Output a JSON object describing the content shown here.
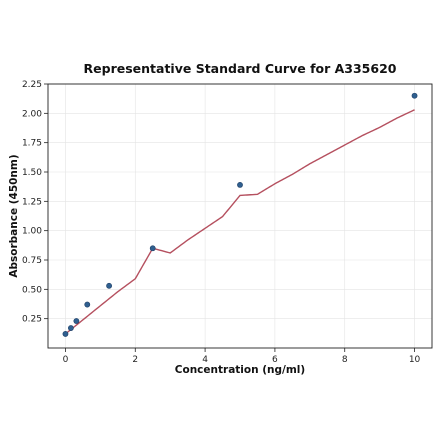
{
  "chart_data": {
    "type": "scatter",
    "title": "Representative Standard Curve for A335620",
    "xlabel": "Concentration (ng/ml)",
    "ylabel": "Absorbance (450nm)",
    "xlim": [
      -0.5,
      10.5
    ],
    "ylim": [
      0.0,
      2.25
    ],
    "xticks": [
      0,
      2,
      4,
      6,
      8,
      10
    ],
    "yticks": [
      0.25,
      0.5,
      0.75,
      1.0,
      1.25,
      1.5,
      1.75,
      2.0,
      2.25
    ],
    "ytick_labels": [
      "0.25",
      "0.50",
      "0.75",
      "1.00",
      "1.25",
      "1.50",
      "1.75",
      "2.00",
      "2.25"
    ],
    "grid": true,
    "series": [
      {
        "points": [
          {
            "x": 0.0,
            "y": 0.12
          },
          {
            "x": 0.156,
            "y": 0.17
          },
          {
            "x": 0.313,
            "y": 0.23
          },
          {
            "x": 0.625,
            "y": 0.37
          },
          {
            "x": 1.25,
            "y": 0.53
          },
          {
            "x": 2.5,
            "y": 0.85
          },
          {
            "x": 5.0,
            "y": 1.39
          },
          {
            "x": 10.0,
            "y": 2.15
          }
        ],
        "color": "#2f5f8f"
      }
    ],
    "fit_curve": {
      "color": "#b5505f",
      "x": [
        0.0,
        0.5,
        1.0,
        1.5,
        2.0,
        2.5,
        3.0,
        3.5,
        4.0,
        4.5,
        5.0,
        5.5,
        6.0,
        6.5,
        7.0,
        7.5,
        8.0,
        8.5,
        9.0,
        9.5,
        10.0
      ],
      "y": [
        0.12,
        0.24,
        0.36,
        0.48,
        0.59,
        0.85,
        0.81,
        0.92,
        1.02,
        1.12,
        1.3,
        1.31,
        1.4,
        1.48,
        1.57,
        1.65,
        1.73,
        1.81,
        1.88,
        1.96,
        2.03
      ]
    }
  }
}
